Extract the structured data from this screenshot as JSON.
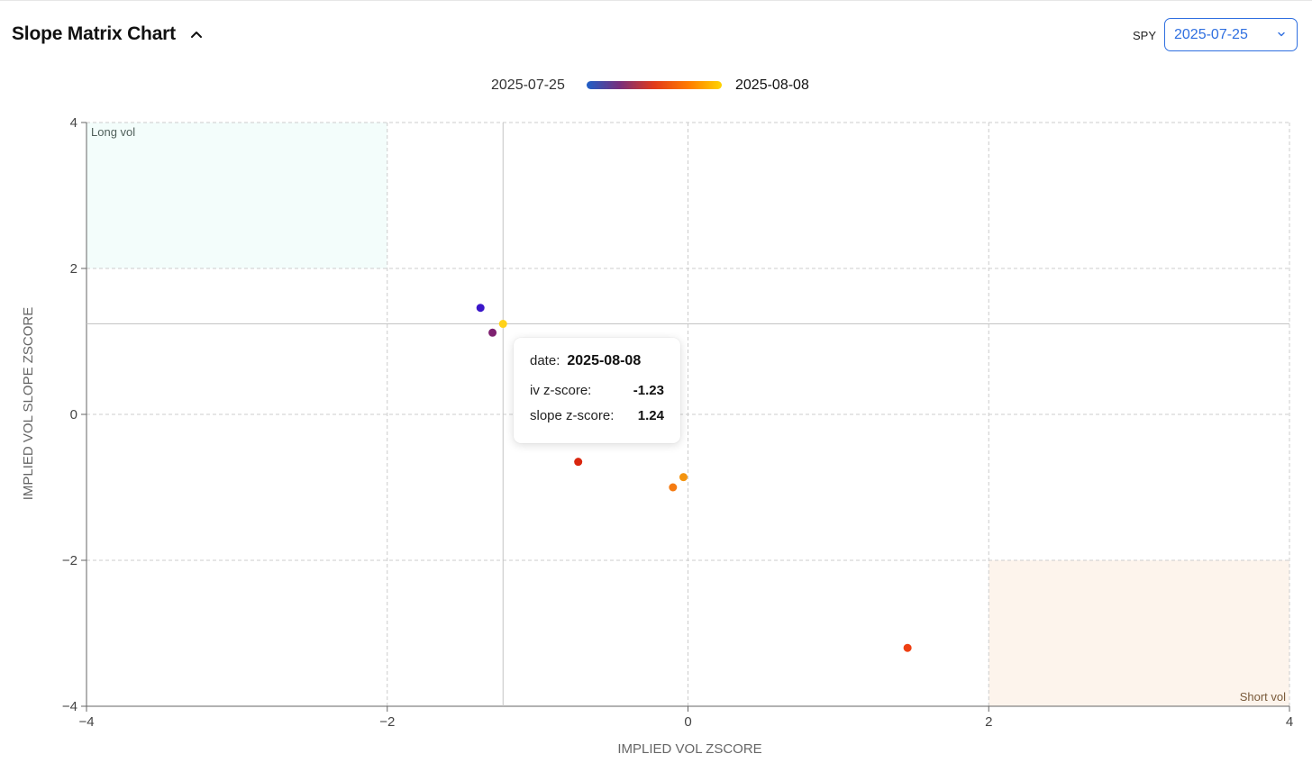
{
  "header": {
    "title": "Slope Matrix Chart",
    "ticker": "SPY",
    "selected_date": "2025-07-25"
  },
  "legend": {
    "start_label": "2025-07-25",
    "end_label": "2025-08-08",
    "gradient_colors": [
      "#1f5fc7",
      "#7a2e7a",
      "#e23c1a",
      "#ff7a00",
      "#ffd400"
    ]
  },
  "tooltip": {
    "date_key": "date:",
    "date_value": "2025-08-08",
    "iv_key": "iv z-score:",
    "iv_value": "-1.23",
    "slope_key": "slope z-score:",
    "slope_value": "1.24"
  },
  "chart_data": {
    "type": "scatter",
    "xlabel": "IMPLIED VOL ZSCORE",
    "ylabel": "IMPLIED VOL SLOPE ZSCORE",
    "xlim": [
      -4,
      4
    ],
    "ylim": [
      -4,
      4
    ],
    "xticks": [
      -4,
      -2,
      0,
      2,
      4
    ],
    "yticks": [
      -4,
      -2,
      0,
      2,
      4
    ],
    "xtick_labels": [
      "−4",
      "−2",
      "0",
      "2",
      "4"
    ],
    "ytick_labels": [
      "−4",
      "−2",
      "0",
      "2",
      "4"
    ],
    "grid": true,
    "regions": [
      {
        "label": "Long vol",
        "x": [
          -4,
          -2
        ],
        "y": [
          2,
          4
        ],
        "color": "#f3fdfb",
        "label_color": "#4f5f5a"
      },
      {
        "label": "Short vol",
        "x": [
          2,
          4
        ],
        "y": [
          -4,
          -2
        ],
        "color": "#fdf4ec",
        "label_color": "#7a5a3a"
      }
    ],
    "crosshair": {
      "x": -1.23,
      "y": 1.24
    },
    "points": [
      {
        "x": -1.38,
        "y": 1.46,
        "color": "#3a16c9"
      },
      {
        "x": -1.3,
        "y": 1.12,
        "color": "#7e2170"
      },
      {
        "x": -0.73,
        "y": -0.65,
        "color": "#d9260f"
      },
      {
        "x": 1.46,
        "y": -3.2,
        "color": "#ee3f12"
      },
      {
        "x": -0.1,
        "y": -1.0,
        "color": "#f57b12"
      },
      {
        "x": -0.03,
        "y": -0.86,
        "color": "#f4940f"
      },
      {
        "x": -1.23,
        "y": 1.24,
        "color": "#ffd21a"
      }
    ]
  }
}
